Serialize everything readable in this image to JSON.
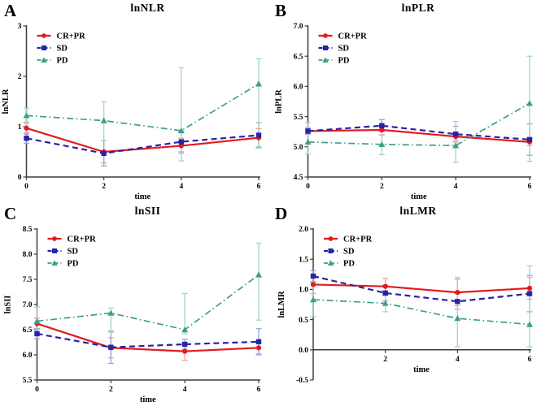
{
  "figure": {
    "kind": "four-panel line chart figure",
    "background": "#ffffff"
  },
  "chart_data": [
    {
      "type": "line",
      "panel_label": "A",
      "title": "lnNLR",
      "xlabel": "time",
      "ylabel": "lnNLR",
      "xlim": [
        0,
        6
      ],
      "ylim": [
        0,
        3
      ],
      "ytick_values": [
        0,
        1,
        2,
        3
      ],
      "ytick_labels": [
        "0",
        "1",
        "2",
        "3"
      ],
      "xtick_values": [
        0,
        2,
        4,
        6
      ],
      "xtick_labels": [
        "0",
        "2",
        "4",
        "6"
      ],
      "xaxis_at": 0,
      "x": [
        0,
        2,
        4,
        6
      ],
      "grid": false,
      "legend_position": "top-left",
      "series": [
        {
          "name": "CR+PR",
          "color": "#e31a1f",
          "light_color": "#f0a0a5",
          "marker": "circle",
          "line_style": "solid",
          "values": [
            0.97,
            0.5,
            0.62,
            0.78
          ],
          "err_lo": [
            0.12,
            0.22,
            0.15,
            0.18
          ],
          "err_hi": [
            0.12,
            0.22,
            0.15,
            0.18
          ]
        },
        {
          "name": "SD",
          "color": "#2823a6",
          "light_color": "#9aa2dc",
          "marker": "square",
          "line_style": "dashed",
          "values": [
            0.77,
            0.47,
            0.7,
            0.83
          ],
          "err_lo": [
            0.1,
            0.25,
            0.2,
            0.25
          ],
          "err_hi": [
            0.1,
            0.25,
            0.2,
            0.25
          ]
        },
        {
          "name": "PD",
          "color": "#3da184",
          "light_color": "#a3d5c2",
          "marker": "triangle",
          "line_style": "dashdot",
          "values": [
            1.22,
            1.12,
            0.92,
            1.85
          ],
          "err_lo": [
            0.15,
            0.4,
            0.6,
            1.25
          ],
          "err_hi": [
            0.15,
            0.38,
            1.25,
            0.5
          ]
        }
      ]
    },
    {
      "type": "line",
      "panel_label": "B",
      "title": "lnPLR",
      "xlabel": "time",
      "ylabel": "lnPLR",
      "xlim": [
        0,
        6
      ],
      "ylim": [
        4.5,
        7.0
      ],
      "ytick_values": [
        4.5,
        5.0,
        5.5,
        6.0,
        6.5,
        7.0
      ],
      "ytick_labels": [
        "4.5",
        "5.0",
        "5.5",
        "6.0",
        "6.5",
        "7.0"
      ],
      "xtick_values": [
        0,
        2,
        4,
        6
      ],
      "xtick_labels": [
        "0",
        "2",
        "4",
        "6"
      ],
      "xaxis_at": 4.5,
      "x": [
        0,
        2,
        4,
        6
      ],
      "grid": false,
      "legend_position": "top-left",
      "series": [
        {
          "name": "CR+PR",
          "color": "#e31a1f",
          "light_color": "#f0a0a5",
          "marker": "circle",
          "line_style": "solid",
          "values": [
            5.26,
            5.28,
            5.17,
            5.08
          ],
          "err_lo": [
            0.05,
            0.08,
            0.06,
            0.06
          ],
          "err_hi": [
            0.05,
            0.08,
            0.06,
            0.06
          ]
        },
        {
          "name": "SD",
          "color": "#2823a6",
          "light_color": "#9aa2dc",
          "marker": "square",
          "line_style": "dashed",
          "values": [
            5.26,
            5.35,
            5.21,
            5.12
          ],
          "err_lo": [
            0.05,
            0.1,
            0.13,
            0.26
          ],
          "err_hi": [
            0.05,
            0.1,
            0.13,
            0.26
          ]
        },
        {
          "name": "PD",
          "color": "#3da184",
          "light_color": "#a3d5c2",
          "marker": "triangle",
          "line_style": "dashdot",
          "values": [
            5.08,
            5.04,
            5.02,
            5.72
          ],
          "err_lo": [
            0.2,
            0.17,
            0.28,
            0.96
          ],
          "err_hi": [
            0.32,
            0.15,
            0.4,
            0.78
          ]
        }
      ]
    },
    {
      "type": "line",
      "panel_label": "C",
      "title": "lnSII",
      "xlabel": "time",
      "ylabel": "lnSII",
      "xlim": [
        0,
        6
      ],
      "ylim": [
        5.5,
        8.5
      ],
      "ytick_values": [
        5.5,
        6.0,
        6.5,
        7.0,
        7.5,
        8.0,
        8.5
      ],
      "ytick_labels": [
        "5.5",
        "6.0",
        "6.5",
        "7.0",
        "7.5",
        "8.0",
        "8.5"
      ],
      "xtick_values": [
        0,
        2,
        4,
        6
      ],
      "xtick_labels": [
        "0",
        "2",
        "4",
        "6"
      ],
      "xaxis_at": 5.5,
      "x": [
        0,
        2,
        4,
        6
      ],
      "grid": false,
      "legend_position": "top-left",
      "series": [
        {
          "name": "CR+PR",
          "color": "#e31a1f",
          "light_color": "#f0a0a5",
          "marker": "circle",
          "line_style": "solid",
          "values": [
            6.62,
            6.14,
            6.07,
            6.14
          ],
          "err_lo": [
            0.11,
            0.2,
            0.18,
            0.12
          ],
          "err_hi": [
            0.11,
            0.2,
            0.18,
            0.12
          ]
        },
        {
          "name": "SD",
          "color": "#2823a6",
          "light_color": "#9aa2dc",
          "marker": "square",
          "line_style": "dashed",
          "values": [
            6.42,
            6.15,
            6.21,
            6.26
          ],
          "err_lo": [
            0.1,
            0.32,
            0.1,
            0.26
          ],
          "err_hi": [
            0.1,
            0.32,
            0.1,
            0.26
          ]
        },
        {
          "name": "PD",
          "color": "#3da184",
          "light_color": "#a3d5c2",
          "marker": "triangle",
          "line_style": "dashdot",
          "values": [
            6.67,
            6.83,
            6.5,
            7.59
          ],
          "err_lo": [
            0.25,
            0.38,
            0.08,
            0.9
          ],
          "err_hi": [
            0.28,
            0.1,
            0.72,
            0.63
          ]
        }
      ]
    },
    {
      "type": "line",
      "panel_label": "D",
      "title": "lnLMR",
      "xlabel": "time",
      "ylabel": "lnLMR",
      "xlim": [
        0,
        6
      ],
      "ylim": [
        -0.5,
        2.0
      ],
      "ytick_values": [
        -0.5,
        0.0,
        0.5,
        1.0,
        1.5,
        2.0
      ],
      "ytick_labels": [
        "-0.5",
        "0.0",
        "0.5",
        "1.0",
        "1.5",
        "2.0"
      ],
      "xtick_values": [
        2,
        4,
        6
      ],
      "xtick_labels": [
        "2",
        "4",
        "6"
      ],
      "xaxis_at": 0.0,
      "x": [
        0,
        2,
        4,
        6
      ],
      "grid": false,
      "legend_position": "top-left",
      "series": [
        {
          "name": "CR+PR",
          "color": "#e31a1f",
          "light_color": "#f0a0a5",
          "marker": "circle",
          "line_style": "solid",
          "values": [
            1.08,
            1.05,
            0.95,
            1.02
          ],
          "err_lo": [
            0.15,
            0.13,
            0.22,
            0.18
          ],
          "err_hi": [
            0.15,
            0.13,
            0.22,
            0.18
          ]
        },
        {
          "name": "SD",
          "color": "#2823a6",
          "light_color": "#9aa2dc",
          "marker": "square",
          "line_style": "dashed",
          "values": [
            1.22,
            0.94,
            0.8,
            0.93
          ],
          "err_lo": [
            0.09,
            0.13,
            0.13,
            0.3
          ],
          "err_hi": [
            0.09,
            0.13,
            0.13,
            0.3
          ]
        },
        {
          "name": "PD",
          "color": "#3da184",
          "light_color": "#a3d5c2",
          "marker": "triangle",
          "line_style": "dashdot",
          "values": [
            0.83,
            0.77,
            0.52,
            0.42
          ],
          "err_lo": [
            0.28,
            0.14,
            0.47,
            0.37
          ],
          "err_hi": [
            0.28,
            0.13,
            0.68,
            0.97
          ]
        }
      ]
    }
  ]
}
